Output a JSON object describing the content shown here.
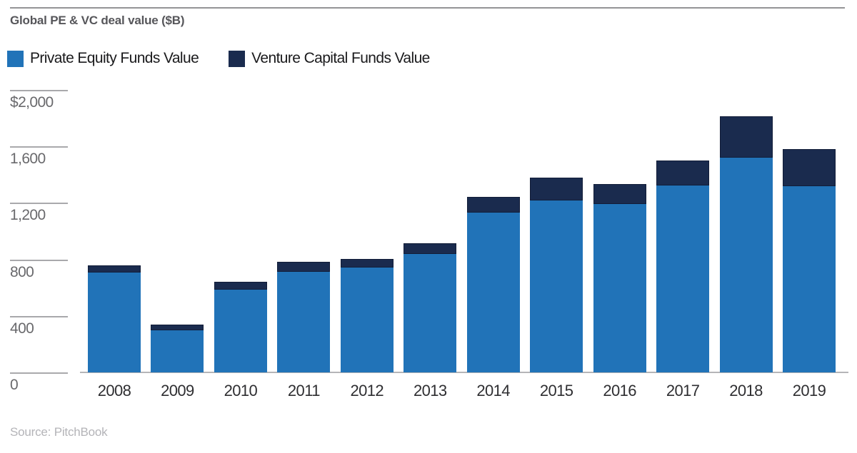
{
  "header": {
    "title": "Global PE & VC deal value ($B)"
  },
  "legend": {
    "items": [
      {
        "label": "Private Equity Funds Value",
        "color": "#2173b8"
      },
      {
        "label": "Venture Capital Funds Value",
        "color": "#1a2b4e"
      }
    ]
  },
  "chart_data": {
    "type": "bar",
    "stacked": true,
    "title": "Global PE & VC deal value ($B)",
    "categories": [
      "2008",
      "2009",
      "2010",
      "2011",
      "2012",
      "2013",
      "2014",
      "2015",
      "2016",
      "2017",
      "2018",
      "2019"
    ],
    "series": [
      {
        "name": "Private Equity Funds Value",
        "color": "#2173b8",
        "values": [
          705,
          300,
          585,
          714,
          743,
          839,
          1130,
          1215,
          1190,
          1325,
          1518,
          1321
        ]
      },
      {
        "name": "Venture Capital Funds Value",
        "color": "#1a2b4e",
        "values": [
          55,
          40,
          55,
          71,
          62,
          73,
          115,
          165,
          146,
          177,
          295,
          260
        ]
      }
    ],
    "xlabel": "",
    "ylabel": "",
    "ylim": [
      0,
      2000
    ],
    "ytick_values": [
      0,
      400,
      800,
      1200,
      1600,
      2000
    ],
    "ytick_labels": [
      "0",
      "400",
      "800",
      "1,200",
      "1,600",
      "$2,000"
    ],
    "grid": "left-tick-stubs-only",
    "legend_position": "top-left"
  },
  "footer": {
    "source": "Source: PitchBook"
  }
}
